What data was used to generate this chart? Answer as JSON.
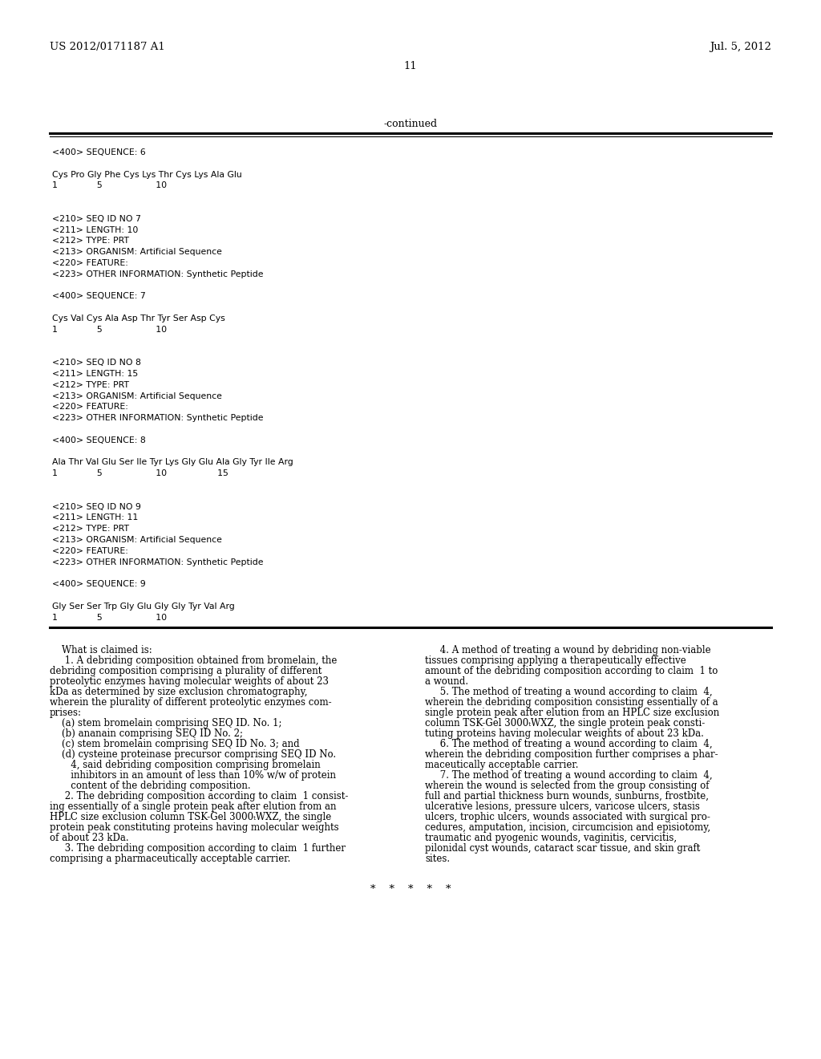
{
  "background_color": "#ffffff",
  "header_left": "US 2012/0171187 A1",
  "header_right": "Jul. 5, 2012",
  "page_number": "11",
  "continued_label": "-continued",
  "monospace_lines": [
    "<400> SEQUENCE: 6",
    "",
    "Cys Pro Gly Phe Cys Lys Thr Cys Lys Ala Glu",
    "1              5                   10",
    "",
    "",
    "<210> SEQ ID NO 7",
    "<211> LENGTH: 10",
    "<212> TYPE: PRT",
    "<213> ORGANISM: Artificial Sequence",
    "<220> FEATURE:",
    "<223> OTHER INFORMATION: Synthetic Peptide",
    "",
    "<400> SEQUENCE: 7",
    "",
    "Cys Val Cys Ala Asp Thr Tyr Ser Asp Cys",
    "1              5                   10",
    "",
    "",
    "<210> SEQ ID NO 8",
    "<211> LENGTH: 15",
    "<212> TYPE: PRT",
    "<213> ORGANISM: Artificial Sequence",
    "<220> FEATURE:",
    "<223> OTHER INFORMATION: Synthetic Peptide",
    "",
    "<400> SEQUENCE: 8",
    "",
    "Ala Thr Val Glu Ser Ile Tyr Lys Gly Glu Ala Gly Tyr Ile Arg",
    "1              5                   10                  15",
    "",
    "",
    "<210> SEQ ID NO 9",
    "<211> LENGTH: 11",
    "<212> TYPE: PRT",
    "<213> ORGANISM: Artificial Sequence",
    "<220> FEATURE:",
    "<223> OTHER INFORMATION: Synthetic Peptide",
    "",
    "<400> SEQUENCE: 9",
    "",
    "Gly Ser Ser Trp Gly Glu Gly Gly Tyr Val Arg",
    "1              5                   10"
  ],
  "claims_left": [
    [
      "normal",
      "    What is claimed is:"
    ],
    [
      "bold_start",
      "    1",
      ". A debriding composition obtained from bromelain, the"
    ],
    [
      "normal",
      "debriding composition comprising a plurality of different"
    ],
    [
      "normal",
      "proteolytic enzymes having molecular weights of about 23"
    ],
    [
      "normal",
      "kDa as determined by size exclusion chromatography,"
    ],
    [
      "normal",
      "wherein the plurality of different proteolytic enzymes com-"
    ],
    [
      "normal",
      "prises:"
    ],
    [
      "normal",
      "    (a) stem bromelain comprising SEQ ID. No. 1;"
    ],
    [
      "normal",
      "    (b) ananain comprising SEQ ID No. 2;"
    ],
    [
      "normal",
      "    (c) stem bromelain comprising SEQ ID No. 3; and"
    ],
    [
      "normal",
      "    (d) cysteine proteinase precursor comprising SEQ ID No."
    ],
    [
      "normal",
      "       4, said debriding composition comprising bromelain"
    ],
    [
      "normal",
      "       inhibitors in an amount of less than 10% w/w of protein"
    ],
    [
      "normal",
      "       content of the debriding composition."
    ],
    [
      "bold_start",
      "    2",
      ". The debriding composition according to claim "
    ],
    [
      "normal",
      "ing essentially of a single protein peak after elution from an"
    ],
    [
      "normal",
      "HPLC size exclusion column TSK-Gel 3000ₜWXZ, the single"
    ],
    [
      "normal",
      "protein peak constituting proteins having molecular weights"
    ],
    [
      "normal",
      "of about 23 kDa."
    ],
    [
      "bold_start",
      "    3",
      ". The debriding composition according to claim "
    ],
    [
      "normal",
      "comprising a pharmaceutically acceptable carrier."
    ]
  ],
  "claims_right": [
    [
      "bold_start",
      "    4",
      ". A method of treating a wound by debriding non-viable"
    ],
    [
      "normal",
      "tissues comprising applying a therapeutically effective"
    ],
    [
      "normal",
      "amount of the debriding composition according to claim 1 to"
    ],
    [
      "normal",
      "a wound."
    ],
    [
      "bold_start",
      "    5",
      ". The method of treating a wound according to claim 4,"
    ],
    [
      "normal",
      "wherein the debriding composition consisting essentially of a"
    ],
    [
      "normal",
      "single protein peak after elution from an HPLC size exclusion"
    ],
    [
      "normal",
      "column TSK-Gel 3000ₜWXZ, the single protein peak consti-"
    ],
    [
      "normal",
      "tuting proteins having molecular weights of about 23 kDa."
    ],
    [
      "bold_start",
      "    6",
      ". The method of treating a wound according to claim 4,"
    ],
    [
      "normal",
      "wherein the debriding composition further comprises a phar-"
    ],
    [
      "normal",
      "maceutically acceptable carrier."
    ],
    [
      "bold_start",
      "    7",
      ". The method of treating a wound according to claim 4,"
    ],
    [
      "normal",
      "wherein the wound is selected from the group consisting of"
    ],
    [
      "normal",
      "full and partial thickness burn wounds, sunburns, frostbite,"
    ],
    [
      "normal",
      "ulcerative lesions, pressure ulcers, varicose ulcers, stasis"
    ],
    [
      "normal",
      "ulcers, trophic ulcers, wounds associated with surgical pro-"
    ],
    [
      "normal",
      "cedures, amputation, incision, circumcision and episiotomy,"
    ],
    [
      "normal",
      "traumatic and pyogenic wounds, vaginitis, cervicitis,"
    ],
    [
      "normal",
      "pilonidal cyst wounds, cataract scar tissue, and skin graft"
    ],
    [
      "normal",
      "sites."
    ]
  ],
  "footer_dots": "*    *    *    *    *"
}
